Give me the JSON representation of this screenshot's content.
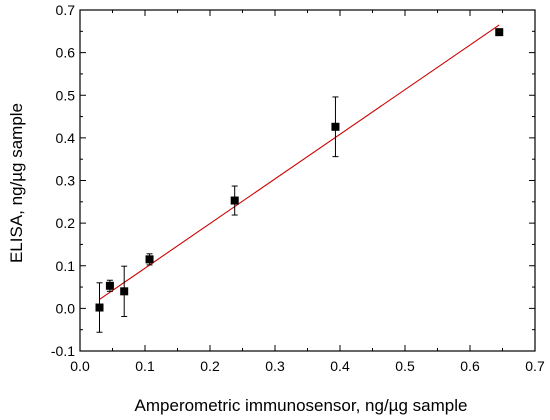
{
  "chart_data": {
    "type": "scatter",
    "title": "",
    "xlabel": "Amperometric immunosensor, ng/µg sample",
    "ylabel": "ELISA, ng/µg sample",
    "xlim": [
      0.0,
      0.7
    ],
    "ylim": [
      -0.1,
      0.7
    ],
    "x_ticks": [
      "0.0",
      "0.1",
      "0.2",
      "0.3",
      "0.4",
      "0.5",
      "0.6",
      "0.7"
    ],
    "y_ticks": [
      "-0.1",
      "0.0",
      "0.1",
      "0.2",
      "0.3",
      "0.4",
      "0.5",
      "0.6",
      "0.7"
    ],
    "grid": false,
    "series": [
      {
        "points": [
          {
            "x": 0.03,
            "y": 0.002,
            "err": 0.058
          },
          {
            "x": 0.046,
            "y": 0.053,
            "err": 0.013
          },
          {
            "x": 0.068,
            "y": 0.04,
            "err": 0.059
          },
          {
            "x": 0.107,
            "y": 0.115,
            "err": 0.013
          },
          {
            "x": 0.238,
            "y": 0.253,
            "err": 0.034
          },
          {
            "x": 0.393,
            "y": 0.426,
            "err": 0.07
          },
          {
            "x": 0.645,
            "y": 0.648,
            "err": null
          }
        ],
        "marker": "square",
        "color": "#000000"
      }
    ],
    "fit_line": {
      "x": [
        0.03,
        0.645
      ],
      "y": [
        0.021,
        0.665
      ],
      "color": "#cc0000"
    }
  }
}
